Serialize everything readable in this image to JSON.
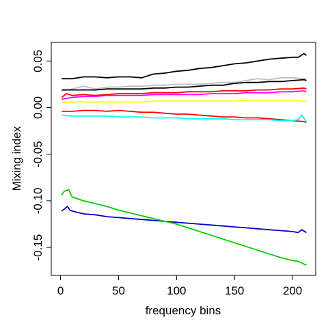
{
  "chart_data": {
    "type": "line",
    "title": "",
    "xlabel": "frequency bins",
    "ylabel": "Mixing index",
    "xlim": [
      -8,
      220
    ],
    "ylim": [
      -0.18,
      0.07
    ],
    "xticks": [
      0,
      50,
      100,
      150,
      200
    ],
    "xtick_labels": [
      "0",
      "50",
      "100",
      "150",
      "200"
    ],
    "yticks": [
      -0.15,
      -0.1,
      -0.05,
      0.0,
      0.05
    ],
    "ytick_labels": [
      "-0.15",
      "-0.10",
      "-0.05",
      "0.00",
      "0.05"
    ],
    "grid": false,
    "legend": "none",
    "series": [
      {
        "color": "#000000",
        "x": [
          1,
          10,
          20,
          30,
          40,
          50,
          60,
          70,
          80,
          90,
          100,
          110,
          120,
          130,
          140,
          150,
          160,
          170,
          180,
          190,
          200,
          205,
          210,
          212
        ],
        "values": [
          0.031,
          0.031,
          0.033,
          0.033,
          0.032,
          0.033,
          0.033,
          0.032,
          0.036,
          0.037,
          0.039,
          0.04,
          0.042,
          0.043,
          0.045,
          0.047,
          0.048,
          0.05,
          0.052,
          0.053,
          0.054,
          0.054,
          0.058,
          0.056
        ]
      },
      {
        "color": "#bebebe",
        "x": [
          1,
          10,
          20,
          30,
          40,
          50,
          60,
          70,
          80,
          90,
          100,
          110,
          120,
          130,
          140,
          150,
          160,
          170,
          180,
          190,
          200,
          210,
          212
        ],
        "values": [
          0.018,
          0.02,
          0.023,
          0.02,
          0.022,
          0.022,
          0.023,
          0.023,
          0.024,
          0.024,
          0.025,
          0.025,
          0.025,
          0.026,
          0.027,
          0.027,
          0.029,
          0.031,
          0.03,
          0.032,
          0.032,
          0.031,
          0.031
        ]
      },
      {
        "color": "#000000",
        "x": [
          1,
          10,
          20,
          30,
          40,
          50,
          60,
          70,
          80,
          90,
          100,
          110,
          120,
          130,
          140,
          150,
          160,
          170,
          180,
          190,
          200,
          210,
          212
        ],
        "values": [
          0.019,
          0.019,
          0.019,
          0.019,
          0.02,
          0.02,
          0.02,
          0.02,
          0.021,
          0.021,
          0.022,
          0.022,
          0.023,
          0.024,
          0.024,
          0.026,
          0.027,
          0.027,
          0.028,
          0.028,
          0.029,
          0.03,
          0.029
        ]
      },
      {
        "color": "#ff00ff",
        "x": [
          1,
          10,
          20,
          30,
          40,
          50,
          60,
          70,
          80,
          90,
          100,
          110,
          120,
          130,
          140,
          150,
          160,
          170,
          180,
          190,
          200,
          210,
          212
        ],
        "values": [
          0.009,
          0.011,
          0.012,
          0.012,
          0.013,
          0.013,
          0.013,
          0.013,
          0.014,
          0.014,
          0.014,
          0.014,
          0.014,
          0.015,
          0.015,
          0.015,
          0.016,
          0.016,
          0.016,
          0.017,
          0.017,
          0.018,
          0.017
        ]
      },
      {
        "color": "#ff0000",
        "x": [
          1,
          5,
          10,
          20,
          30,
          40,
          50,
          60,
          70,
          80,
          90,
          100,
          110,
          120,
          130,
          140,
          150,
          160,
          170,
          180,
          190,
          200,
          210,
          212
        ],
        "values": [
          0.011,
          0.015,
          0.013,
          0.014,
          0.013,
          0.014,
          0.015,
          0.015,
          0.015,
          0.016,
          0.016,
          0.016,
          0.017,
          0.017,
          0.017,
          0.018,
          0.018,
          0.018,
          0.019,
          0.019,
          0.02,
          0.02,
          0.021,
          0.02
        ]
      },
      {
        "color": "#ffff00",
        "x": [
          1,
          10,
          20,
          30,
          40,
          50,
          60,
          70,
          80,
          90,
          100,
          110,
          120,
          130,
          140,
          150,
          160,
          170,
          180,
          190,
          200,
          210,
          212
        ],
        "values": [
          0.006,
          0.006,
          0.006,
          0.006,
          0.006,
          0.006,
          0.006,
          0.006,
          0.007,
          0.007,
          0.007,
          0.007,
          0.007,
          0.007,
          0.007,
          0.007,
          0.008,
          0.008,
          0.008,
          0.008,
          0.008,
          0.007,
          0.007
        ]
      },
      {
        "color": "#ff0000",
        "x": [
          1,
          10,
          20,
          30,
          40,
          50,
          60,
          70,
          80,
          90,
          100,
          110,
          120,
          130,
          140,
          150,
          160,
          170,
          180,
          190,
          200,
          210,
          212
        ],
        "values": [
          -0.004,
          -0.004,
          -0.003,
          -0.003,
          -0.004,
          -0.003,
          -0.004,
          -0.005,
          -0.005,
          -0.006,
          -0.007,
          -0.007,
          -0.008,
          -0.009,
          -0.01,
          -0.01,
          -0.011,
          -0.011,
          -0.012,
          -0.013,
          -0.014,
          -0.015,
          -0.016
        ]
      },
      {
        "color": "#00ffff",
        "x": [
          1,
          10,
          20,
          30,
          40,
          50,
          60,
          70,
          80,
          90,
          100,
          110,
          120,
          130,
          140,
          150,
          160,
          170,
          180,
          190,
          200,
          205,
          208,
          212
        ],
        "values": [
          -0.008,
          -0.009,
          -0.009,
          -0.009,
          -0.009,
          -0.01,
          -0.01,
          -0.01,
          -0.011,
          -0.011,
          -0.011,
          -0.012,
          -0.012,
          -0.012,
          -0.012,
          -0.013,
          -0.013,
          -0.013,
          -0.013,
          -0.014,
          -0.014,
          -0.013,
          -0.008,
          -0.015
        ]
      },
      {
        "color": "#0000cd",
        "x": [
          1,
          3,
          6,
          8,
          10,
          20,
          30,
          40,
          50,
          60,
          70,
          80,
          90,
          100,
          110,
          120,
          130,
          140,
          150,
          160,
          170,
          180,
          190,
          200,
          205,
          208,
          212
        ],
        "values": [
          -0.111,
          -0.109,
          -0.106,
          -0.11,
          -0.111,
          -0.114,
          -0.115,
          -0.117,
          -0.118,
          -0.119,
          -0.12,
          -0.121,
          -0.122,
          -0.123,
          -0.124,
          -0.125,
          -0.126,
          -0.127,
          -0.128,
          -0.129,
          -0.13,
          -0.131,
          -0.132,
          -0.133,
          -0.134,
          -0.131,
          -0.134
        ]
      },
      {
        "color": "#00cd00",
        "x": [
          1,
          3,
          5,
          7,
          10,
          20,
          30,
          40,
          50,
          60,
          70,
          80,
          90,
          100,
          110,
          120,
          130,
          140,
          150,
          160,
          170,
          180,
          190,
          200,
          205,
          210,
          212
        ],
        "values": [
          -0.094,
          -0.09,
          -0.089,
          -0.088,
          -0.096,
          -0.1,
          -0.103,
          -0.106,
          -0.11,
          -0.113,
          -0.116,
          -0.119,
          -0.122,
          -0.125,
          -0.129,
          -0.133,
          -0.137,
          -0.141,
          -0.145,
          -0.149,
          -0.153,
          -0.157,
          -0.161,
          -0.164,
          -0.165,
          -0.168,
          -0.169
        ]
      }
    ]
  }
}
